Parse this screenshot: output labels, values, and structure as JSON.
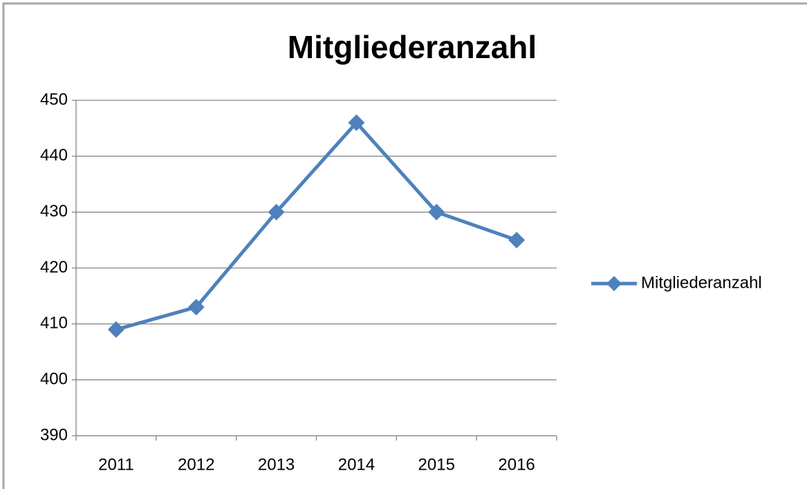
{
  "chart_data": {
    "type": "line",
    "title": "Mitgliederanzahl",
    "categories": [
      "2011",
      "2012",
      "2013",
      "2014",
      "2015",
      "2016"
    ],
    "series": [
      {
        "name": "Mitgliederanzahl",
        "color": "#4f81bd",
        "values": [
          409,
          413,
          430,
          446,
          430,
          425
        ]
      }
    ],
    "ylim": [
      390,
      450
    ],
    "yticks": [
      390,
      400,
      410,
      420,
      430,
      440,
      450
    ],
    "grid": true,
    "legend": "right"
  }
}
